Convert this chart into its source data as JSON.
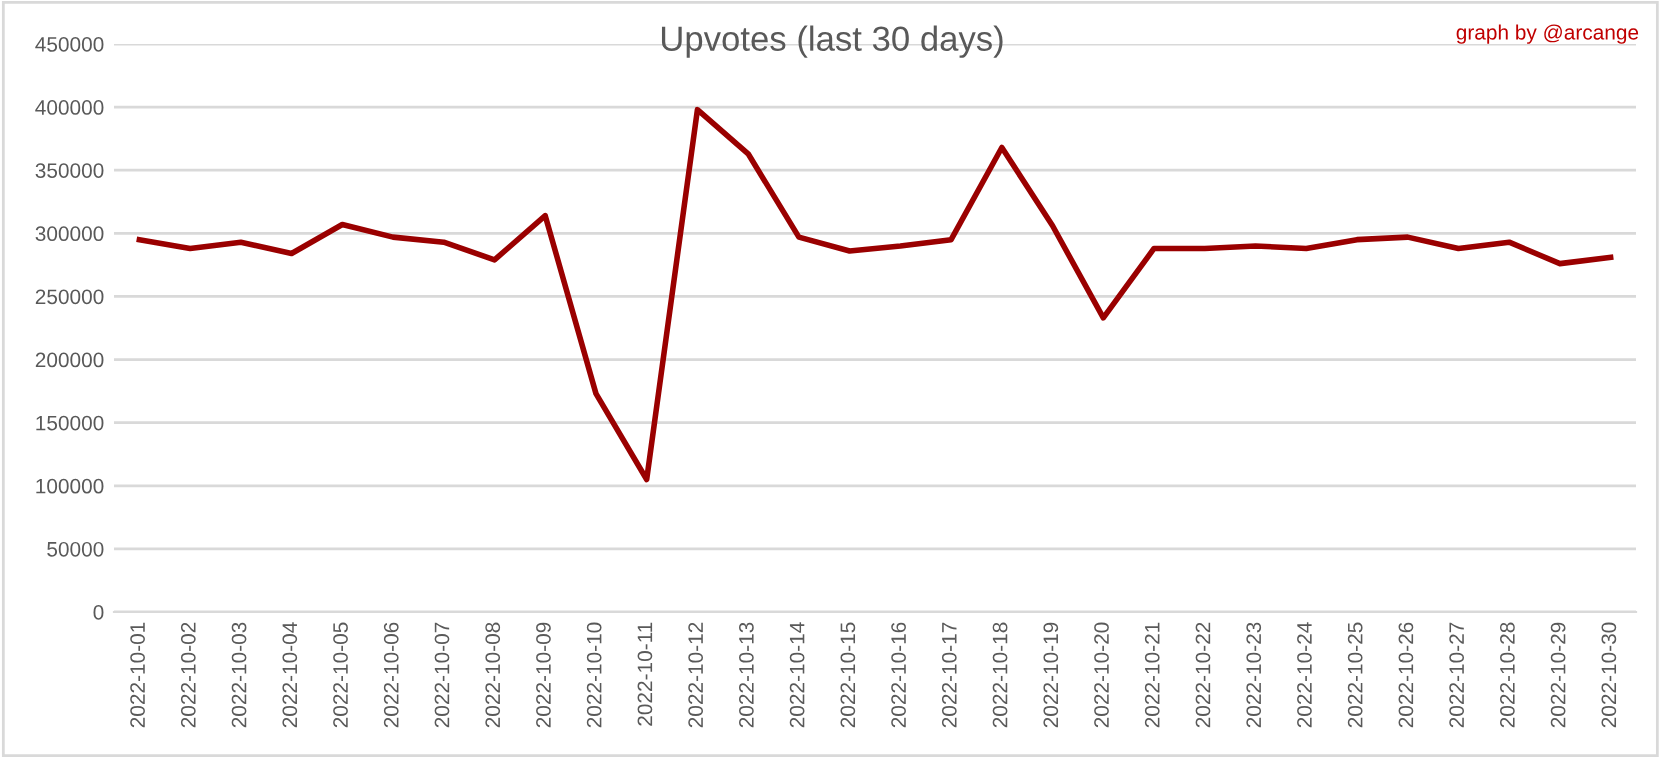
{
  "chart_data": {
    "type": "line",
    "title": "Upvotes (last 30 days)",
    "annotations": [
      "graph by @arcange"
    ],
    "categories": [
      "2022-10-01",
      "2022-10-02",
      "2022-10-03",
      "2022-10-04",
      "2022-10-05",
      "2022-10-06",
      "2022-10-07",
      "2022-10-08",
      "2022-10-09",
      "2022-10-10",
      "2022-10-11",
      "2022-10-12",
      "2022-10-13",
      "2022-10-14",
      "2022-10-15",
      "2022-10-16",
      "2022-10-17",
      "2022-10-18",
      "2022-10-19",
      "2022-10-20",
      "2022-10-21",
      "2022-10-22",
      "2022-10-23",
      "2022-10-24",
      "2022-10-25",
      "2022-10-26",
      "2022-10-27",
      "2022-10-28",
      "2022-10-29",
      "2022-10-30"
    ],
    "series": [
      {
        "color": "#9a0000",
        "values": [
          295000,
          288000,
          293000,
          284000,
          307000,
          297000,
          293000,
          279000,
          314000,
          173000,
          105000,
          398000,
          363000,
          297000,
          286000,
          290000,
          295000,
          368000,
          306000,
          233000,
          288000,
          288000,
          290000,
          288000,
          295000,
          297000,
          288000,
          293000,
          276000,
          281000
        ]
      }
    ],
    "ylim": [
      0,
      450000
    ],
    "yticks": [
      0,
      50000,
      100000,
      150000,
      200000,
      250000,
      300000,
      350000,
      400000,
      450000
    ],
    "grid": "y",
    "marker": "none",
    "line_style": "solid"
  }
}
